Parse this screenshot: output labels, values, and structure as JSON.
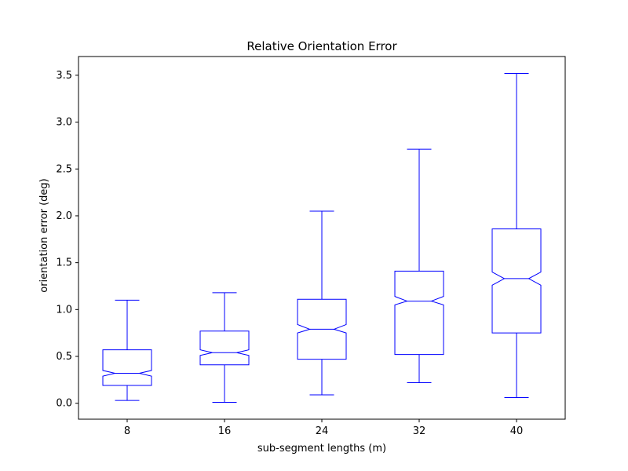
{
  "chart_data": {
    "type": "boxplot",
    "title": "Relative Orientation Error",
    "xlabel": "sub-segment lengths (m)",
    "ylabel": "orientation error (deg)",
    "categories": [
      "8",
      "16",
      "24",
      "32",
      "40"
    ],
    "ylim": [
      -0.17,
      3.7
    ],
    "yticks": [
      0.0,
      0.5,
      1.0,
      1.5,
      2.0,
      2.5,
      3.0,
      3.5
    ],
    "ytick_labels": [
      "0.0",
      "0.5",
      "1.0",
      "1.5",
      "2.0",
      "2.5",
      "3.0",
      "3.5"
    ],
    "notched": true,
    "grid": false,
    "color": "#0000ff",
    "boxes": [
      {
        "label": "8",
        "whisker_low": 0.03,
        "q1": 0.19,
        "median": 0.32,
        "q3": 0.57,
        "whisker_high": 1.1,
        "notch_low": 0.29,
        "notch_high": 0.35
      },
      {
        "label": "16",
        "whisker_low": 0.01,
        "q1": 0.41,
        "median": 0.54,
        "q3": 0.77,
        "whisker_high": 1.18,
        "notch_low": 0.51,
        "notch_high": 0.57
      },
      {
        "label": "24",
        "whisker_low": 0.09,
        "q1": 0.47,
        "median": 0.79,
        "q3": 1.11,
        "whisker_high": 2.05,
        "notch_low": 0.75,
        "notch_high": 0.84
      },
      {
        "label": "32",
        "whisker_low": 0.22,
        "q1": 0.52,
        "median": 1.09,
        "q3": 1.41,
        "whisker_high": 2.71,
        "notch_low": 1.05,
        "notch_high": 1.14
      },
      {
        "label": "40",
        "whisker_low": 0.06,
        "q1": 0.75,
        "median": 1.33,
        "q3": 1.86,
        "whisker_high": 3.52,
        "notch_low": 1.26,
        "notch_high": 1.4
      }
    ]
  }
}
